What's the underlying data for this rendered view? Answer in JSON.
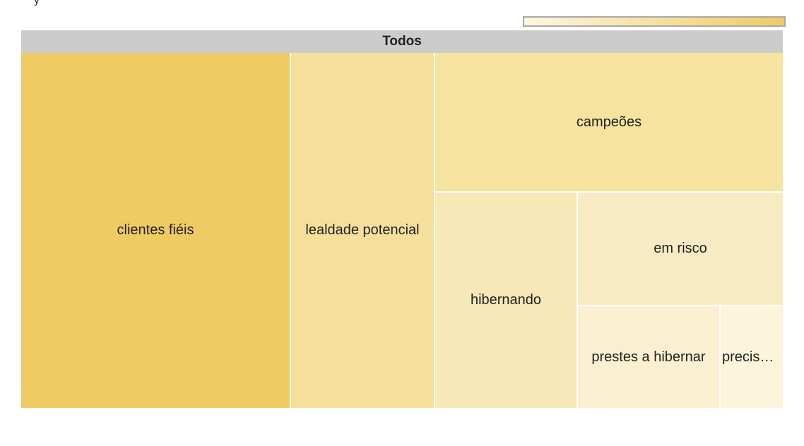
{
  "partial_text": "y",
  "legend": {
    "color_min": "#fdf6e0",
    "color_max": "#efcb63"
  },
  "chart_data": {
    "type": "treemap",
    "root": "Todos",
    "items": [
      {
        "label": "clientes fiéis",
        "value": 35.5,
        "color": "#efcb63"
      },
      {
        "label": "lealdade potencial",
        "value": 19.1,
        "color": "#f5e09b"
      },
      {
        "label": "campeões",
        "value": 16.9,
        "color": "#f6e39f"
      },
      {
        "label": "hibernando",
        "value": 10.1,
        "color": "#f7e8b8"
      },
      {
        "label": "em risco",
        "value": 7.4,
        "color": "#f8ebc3"
      },
      {
        "label": "prestes a hibernar",
        "value": 6.9,
        "color": "#faf0d1"
      },
      {
        "label": "precisa…",
        "value": 4.1,
        "color": "#fcf5dc"
      }
    ]
  }
}
